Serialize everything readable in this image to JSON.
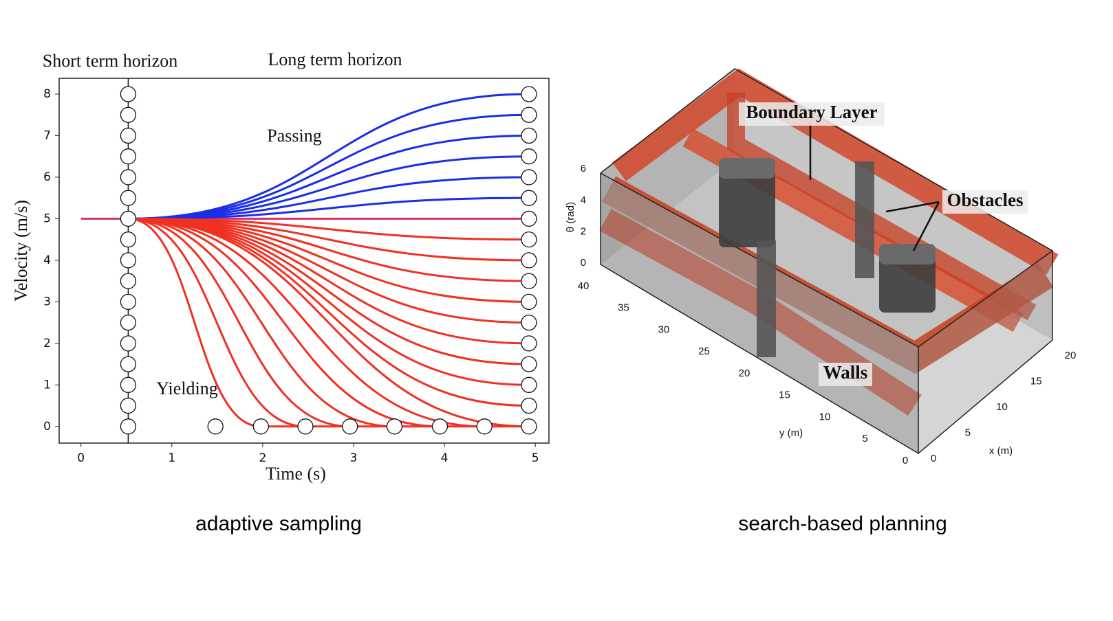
{
  "chart_data": {
    "type": "line",
    "annotations": [
      "Short term horizon",
      "Long term horizon",
      "Passing",
      "Yielding"
    ],
    "xlabel": "Time (s)",
    "ylabel": "Velocity (m/s)",
    "xlim": [
      -0.24,
      5.15
    ],
    "ylim": [
      -0.4,
      8.38
    ],
    "xticks": [
      0,
      1,
      2,
      3,
      4,
      5
    ],
    "yticks": [
      0,
      1,
      2,
      3,
      4,
      5,
      6,
      7,
      8
    ],
    "grid": false,
    "series": [
      {
        "color": "#d6336c",
        "x": [
          0,
          4.93
        ],
        "values": [
          5,
          5
        ]
      },
      {
        "color": "#1a2ee8",
        "x": [
          0.52,
          4.93
        ],
        "values": [
          5,
          8
        ]
      },
      {
        "color": "#1a2ee8",
        "x": [
          0.52,
          4.93
        ],
        "values": [
          5,
          7.5
        ]
      },
      {
        "color": "#1a2ee8",
        "x": [
          0.52,
          4.93
        ],
        "values": [
          5,
          7
        ]
      },
      {
        "color": "#1a2ee8",
        "x": [
          0.52,
          4.93
        ],
        "values": [
          5,
          6.5
        ]
      },
      {
        "color": "#1a2ee8",
        "x": [
          0.52,
          4.93
        ],
        "values": [
          5,
          6
        ]
      },
      {
        "color": "#1a2ee8",
        "x": [
          0.52,
          4.93
        ],
        "values": [
          5,
          5.5
        ]
      },
      {
        "color": "#f03020",
        "x": [
          0.52,
          4.93
        ],
        "values": [
          5,
          4.5
        ]
      },
      {
        "color": "#f03020",
        "x": [
          0.52,
          4.93
        ],
        "values": [
          5,
          4
        ]
      },
      {
        "color": "#f03020",
        "x": [
          0.52,
          4.93
        ],
        "values": [
          5,
          3.5
        ]
      },
      {
        "color": "#f03020",
        "x": [
          0.52,
          4.93
        ],
        "values": [
          5,
          3
        ]
      },
      {
        "color": "#f03020",
        "x": [
          0.52,
          4.93
        ],
        "values": [
          5,
          2.5
        ]
      },
      {
        "color": "#f03020",
        "x": [
          0.52,
          4.93
        ],
        "values": [
          5,
          2
        ]
      },
      {
        "color": "#f03020",
        "x": [
          0.52,
          4.93
        ],
        "values": [
          5,
          1.5
        ]
      },
      {
        "color": "#f03020",
        "x": [
          0.52,
          4.93
        ],
        "values": [
          5,
          1
        ]
      },
      {
        "color": "#f03020",
        "x": [
          0.52,
          4.93
        ],
        "values": [
          5,
          0.5
        ]
      },
      {
        "color": "#f03020",
        "x": [
          0.52,
          4.93
        ],
        "values": [
          5,
          0
        ]
      },
      {
        "color": "#f03020",
        "x": [
          0.52,
          4.44
        ],
        "values": [
          5,
          0
        ]
      },
      {
        "color": "#f03020",
        "x": [
          0.52,
          3.95
        ],
        "values": [
          5,
          0
        ]
      },
      {
        "color": "#f03020",
        "x": [
          0.52,
          3.45
        ],
        "values": [
          5,
          0
        ]
      },
      {
        "color": "#f03020",
        "x": [
          0.52,
          2.96
        ],
        "values": [
          5,
          0
        ]
      },
      {
        "color": "#f03020",
        "x": [
          0.52,
          2.47
        ],
        "values": [
          5,
          0
        ]
      },
      {
        "color": "#f03020",
        "x": [
          0.52,
          1.98
        ],
        "values": [
          5,
          0
        ]
      },
      {
        "color": "#f03020",
        "x": [
          1.98,
          4.93
        ],
        "values": [
          0,
          0
        ]
      }
    ],
    "markers": {
      "x": [
        0.52,
        0.52,
        0.52,
        0.52,
        0.52,
        0.52,
        0.52,
        0.52,
        0.52,
        0.52,
        0.52,
        0.52,
        0.52,
        0.52,
        0.52,
        0.52,
        0.52,
        4.93,
        4.93,
        4.93,
        4.93,
        4.93,
        4.93,
        4.93,
        4.93,
        4.93,
        4.93,
        4.93,
        4.93,
        4.93,
        4.93,
        4.93,
        4.93,
        4.93,
        1.48,
        1.98,
        2.47,
        2.96,
        3.45,
        3.95,
        4.44
      ],
      "values": [
        0,
        0.5,
        1,
        1.5,
        2,
        2.5,
        3,
        3.5,
        4,
        4.5,
        5,
        5.5,
        6,
        6.5,
        7,
        7.5,
        8,
        0,
        0.5,
        1,
        1.5,
        2,
        2.5,
        3,
        3.5,
        4,
        4.5,
        5,
        5.5,
        6,
        6.5,
        7,
        7.5,
        8,
        0,
        0,
        0,
        0,
        0,
        0,
        0
      ]
    },
    "caption": "adaptive sampling"
  },
  "figure": {
    "labels": [
      "Boundary Layer",
      "Obstacles",
      "Walls"
    ],
    "theta_label": "θ (rad)",
    "theta_ticks": [
      0,
      2,
      4,
      6
    ],
    "y_label": "y (m)",
    "y_ticks": [
      0,
      5,
      10,
      15,
      20,
      25,
      30,
      35,
      40
    ],
    "x_label": "x (m)",
    "x_ticks": [
      0,
      5,
      10,
      15,
      20
    ],
    "caption": "search-based planning"
  }
}
